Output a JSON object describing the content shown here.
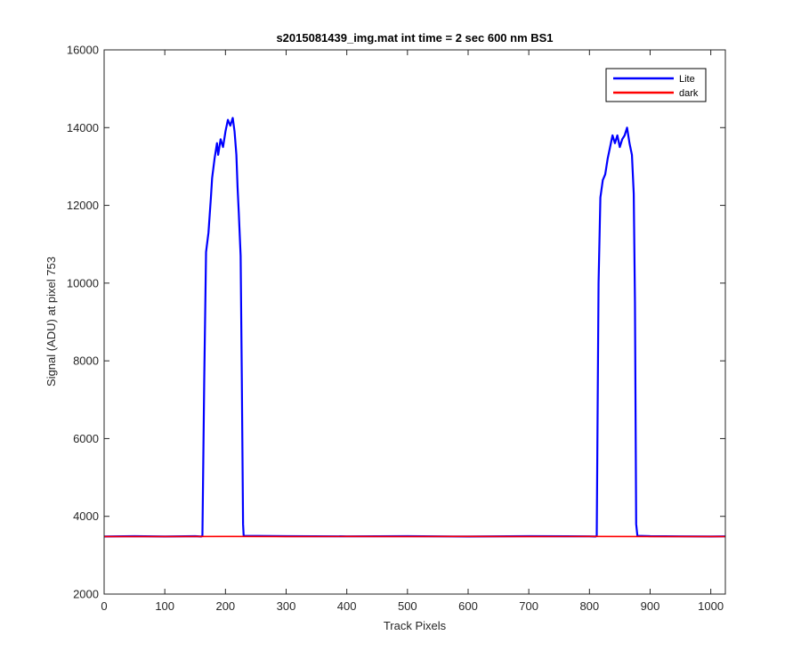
{
  "chart_data": {
    "type": "line",
    "title": "s2015081439_img.mat int time = 2 sec  600 nm BS1",
    "xlabel": "Track Pixels",
    "ylabel": "Signal (ADU) at pixel 753",
    "xlim": [
      0,
      1024
    ],
    "ylim": [
      2000,
      16000
    ],
    "xticks": [
      0,
      100,
      200,
      300,
      400,
      500,
      600,
      700,
      800,
      900,
      1000
    ],
    "yticks": [
      2000,
      4000,
      6000,
      8000,
      10000,
      12000,
      14000,
      16000
    ],
    "grid": false,
    "legend_position": "top-right",
    "series": [
      {
        "name": "Lite",
        "color": "#0000ff",
        "points": [
          [
            0,
            3480
          ],
          [
            50,
            3490
          ],
          [
            100,
            3480
          ],
          [
            150,
            3490
          ],
          [
            160,
            3480
          ],
          [
            162,
            3500
          ],
          [
            165,
            7500
          ],
          [
            168,
            10800
          ],
          [
            172,
            11300
          ],
          [
            176,
            12200
          ],
          [
            178,
            12700
          ],
          [
            182,
            13200
          ],
          [
            186,
            13600
          ],
          [
            188,
            13300
          ],
          [
            192,
            13700
          ],
          [
            196,
            13500
          ],
          [
            200,
            13900
          ],
          [
            204,
            14200
          ],
          [
            208,
            14050
          ],
          [
            212,
            14250
          ],
          [
            215,
            13900
          ],
          [
            218,
            13300
          ],
          [
            220,
            12450
          ],
          [
            222,
            11800
          ],
          [
            225,
            10700
          ],
          [
            227,
            7500
          ],
          [
            229,
            3800
          ],
          [
            230,
            3500
          ],
          [
            300,
            3490
          ],
          [
            400,
            3485
          ],
          [
            500,
            3490
          ],
          [
            600,
            3480
          ],
          [
            700,
            3490
          ],
          [
            800,
            3485
          ],
          [
            810,
            3480
          ],
          [
            812,
            3500
          ],
          [
            815,
            10000
          ],
          [
            818,
            12200
          ],
          [
            822,
            12650
          ],
          [
            826,
            12800
          ],
          [
            830,
            13200
          ],
          [
            834,
            13500
          ],
          [
            838,
            13800
          ],
          [
            842,
            13600
          ],
          [
            846,
            13800
          ],
          [
            850,
            13500
          ],
          [
            854,
            13700
          ],
          [
            858,
            13800
          ],
          [
            862,
            14000
          ],
          [
            866,
            13600
          ],
          [
            870,
            13300
          ],
          [
            873,
            12300
          ],
          [
            875,
            9500
          ],
          [
            877,
            3800
          ],
          [
            879,
            3500
          ],
          [
            900,
            3490
          ],
          [
            1000,
            3480
          ],
          [
            1024,
            3485
          ]
        ]
      },
      {
        "name": "dark",
        "color": "#ff0000",
        "points": [
          [
            0,
            3480
          ],
          [
            100,
            3480
          ],
          [
            200,
            3482
          ],
          [
            300,
            3480
          ],
          [
            400,
            3481
          ],
          [
            500,
            3480
          ],
          [
            600,
            3482
          ],
          [
            700,
            3480
          ],
          [
            800,
            3481
          ],
          [
            900,
            3480
          ],
          [
            1024,
            3480
          ]
        ]
      }
    ]
  }
}
